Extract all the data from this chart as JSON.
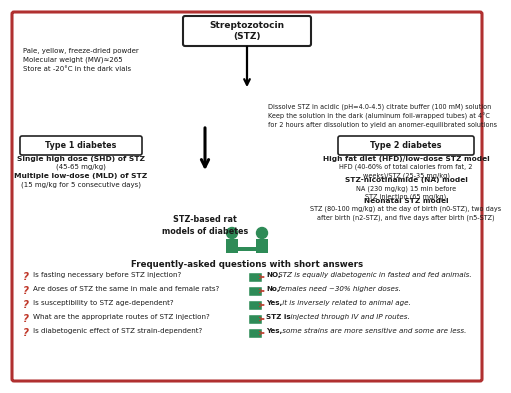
{
  "bg_color": "#ffffff",
  "border_color": "#b03030",
  "title_line1": "Streptozotocin",
  "title_line2": "(STZ)",
  "top_left_text": "Pale, yellow, freeze-dried powder\nMolecular weight (MW)≈265\nStore at -20°C in the dark vials",
  "dissolve_text": "Dissolve STZ in acidic (pH=4.0-4.5) citrate buffer (100 mM) solution\nKeep the solution in the dark (aluminum foil-wrapped tubes) at 4°C\nfor 2 hours after dissolution to yield an anomer-equilibrated solutions",
  "type1_label": "Type 1 diabetes",
  "type1_s1b": "Single high dose (SHD) of STZ",
  "type1_s1l": "(45-65 mg/kg)",
  "type1_s2b": "Multiple low-dose (MLD) of STZ",
  "type1_s2l": "(15 mg/kg for 5 consecutive days)",
  "type2_label": "Type 2 diabetes",
  "type2_s1b": "High fat diet (HFD)/low-dose STZ model",
  "type2_s1l": "HFD (40-60% of total calories from fat, 2\nweeks)/STZ (25-35 mg/kg)",
  "type2_s2b": "STZ-nicotinamide (NA) model",
  "type2_s2l": "NA (230 mg/kg) 15 min before\nSTZ injection (65 mg/kg)",
  "type2_s3b": "Neonatal STZ model",
  "type2_s3l": "STZ (80-100 mg/kg) at the day of birth (n0-STZ), two days\nafter birth (n2-STZ), and five days after birth (n5-STZ)",
  "rat_label": "STZ-based rat\nmodels of diabetes",
  "faq_title": "Frequently-asked questions with short answers",
  "questions": [
    "Is fasting necessary before STZ injection?",
    "Are doses of STZ the same in male and female rats?",
    "Is susceptibility to STZ age-dependent?",
    "What are the appropriate routes of STZ injection?",
    "Is diabetogenic effect of STZ strain-dependent?"
  ],
  "ans_bold": [
    "NO,",
    "No,",
    "Yes,",
    "STZ is",
    "Yes,"
  ],
  "ans_italic": [
    " STZ is equally diabetogenic in fasted and fed animals.",
    " females need ~30% higher doses.",
    " it is inversely related to animal age.",
    "  injected through IV and IP routes.",
    " some strains are more sensitive and some are less."
  ],
  "red": "#c0392b",
  "green": "#2e8b57",
  "dark": "#1a1a1a",
  "light_pink": "#f5c6c6"
}
